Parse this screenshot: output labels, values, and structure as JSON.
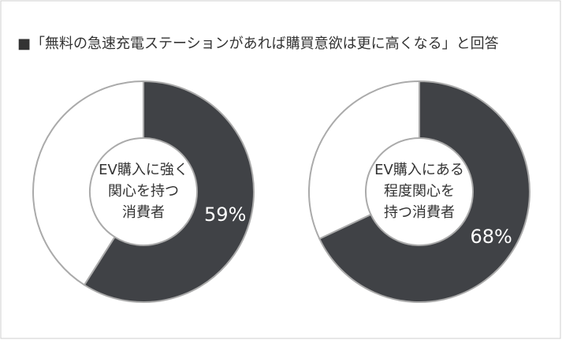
{
  "header": {
    "title": "■「無料の急速充電ステーションがあれば購買意欲は更に高くなる」と回答"
  },
  "chart_data": [
    {
      "type": "donut",
      "center_label": [
        "EV購入に強く",
        "関心を持つ",
        "消費者"
      ],
      "values": [
        59,
        41
      ],
      "value_labels": [
        "59%",
        null
      ],
      "colors": [
        "#404246",
        "#ffffff"
      ]
    },
    {
      "type": "donut",
      "center_label": [
        "EV購入にある",
        "程度関心を",
        "持つ消費者"
      ],
      "values": [
        68,
        32
      ],
      "value_labels": [
        "68%",
        null
      ],
      "colors": [
        "#404246",
        "#ffffff"
      ]
    }
  ]
}
